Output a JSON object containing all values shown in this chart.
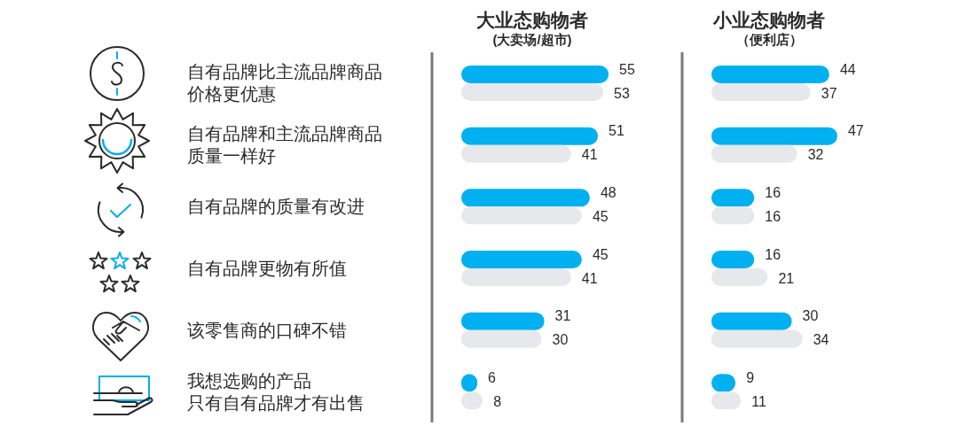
{
  "chart_data": [
    {
      "type": "bar",
      "orientation": "horizontal",
      "title": "大业态购物者",
      "subtitle": "(大卖场/超市)",
      "categories": [
        "自有品牌比主流品牌商品价格更优惠",
        "自有品牌和主流品牌商品质量一样好",
        "自有品牌的质量有改进",
        "自有品牌更物有所值",
        "该零售商的口碑不错",
        "我想选购的产品只有自有品牌才有出售"
      ],
      "series": [
        {
          "color": "#00b0f0",
          "values": [
            55,
            51,
            48,
            45,
            31,
            6
          ]
        },
        {
          "color": "#e6e8eb",
          "values": [
            53,
            41,
            45,
            41,
            30,
            8
          ]
        }
      ],
      "data_labels": true,
      "tick_labels": "y"
    },
    {
      "type": "bar",
      "orientation": "horizontal",
      "title": "小业态购物者",
      "subtitle": "（便利店）",
      "categories": [
        null,
        null,
        null,
        null,
        null,
        null
      ],
      "series": [
        {
          "color": "#00b0f0",
          "values": [
            44,
            47,
            16,
            16,
            30,
            9
          ]
        },
        {
          "color": "#e6e8eb",
          "values": [
            37,
            32,
            16,
            21,
            34,
            11
          ]
        }
      ],
      "data_labels": true,
      "tick_labels": false
    }
  ]
}
